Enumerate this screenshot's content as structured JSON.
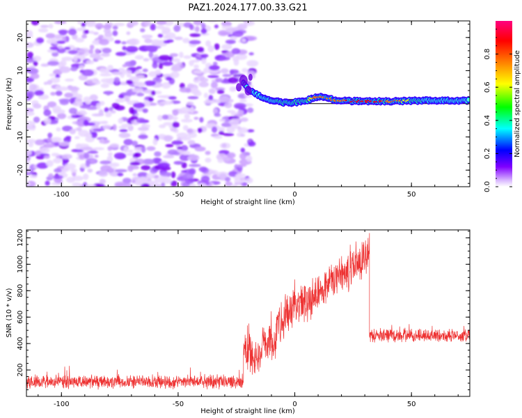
{
  "title": "PAZ1.2024.177.00.33.G21",
  "chart_data": [
    {
      "type": "heatmap",
      "xlabel": "Height of straight line (km)",
      "ylabel": "Frequency (Hz)",
      "xlim": [
        -115,
        75
      ],
      "ylim": [
        -25,
        25
      ],
      "x_ticks": [
        -100,
        -50,
        0,
        50
      ],
      "y_ticks": [
        -20,
        -10,
        0,
        10,
        20
      ],
      "colorbar": {
        "label": "Normalized spectral amplitude",
        "range": [
          0.0,
          1.0
        ],
        "ticks": [
          0.0,
          0.2,
          0.4,
          0.6,
          0.8
        ],
        "colors": [
          "#ffffff",
          "#8000ff",
          "#0000ff",
          "#00ffff",
          "#00ff00",
          "#ffff00",
          "#ff8000",
          "#ff0000",
          "#ff0080"
        ]
      },
      "noise_region": {
        "x_range": [
          -115,
          -18
        ],
        "level": 0.15
      },
      "ridge": [
        {
          "x": -22,
          "y": 6.5,
          "amp": 0.3
        },
        {
          "x": -20,
          "y": 4.5,
          "amp": 0.35
        },
        {
          "x": -17,
          "y": 3.0,
          "amp": 0.35
        },
        {
          "x": -14,
          "y": 2.0,
          "amp": 0.4
        },
        {
          "x": -10,
          "y": 1.0,
          "amp": 0.45
        },
        {
          "x": -6,
          "y": 0.5,
          "amp": 0.55
        },
        {
          "x": -2,
          "y": 0.3,
          "amp": 0.5
        },
        {
          "x": 2,
          "y": 0.6,
          "amp": 0.55
        },
        {
          "x": 6,
          "y": 1.2,
          "amp": 0.6
        },
        {
          "x": 10,
          "y": 2.2,
          "amp": 0.8
        },
        {
          "x": 14,
          "y": 1.8,
          "amp": 0.8
        },
        {
          "x": 18,
          "y": 1.0,
          "amp": 0.75
        },
        {
          "x": 25,
          "y": 0.8,
          "amp": 0.85
        },
        {
          "x": 35,
          "y": 0.8,
          "amp": 0.85
        },
        {
          "x": 45,
          "y": 0.8,
          "amp": 0.7
        },
        {
          "x": 55,
          "y": 1.0,
          "amp": 0.5
        },
        {
          "x": 65,
          "y": 1.0,
          "amp": 0.45
        },
        {
          "x": 75,
          "y": 1.0,
          "amp": 0.45
        }
      ]
    },
    {
      "type": "line",
      "xlabel": "Height of straight line (km)",
      "ylabel": "SNR (10 * v/v)",
      "xlim": [
        -115,
        75
      ],
      "ylim": [
        0,
        1260
      ],
      "x_ticks": [
        -100,
        -50,
        0,
        50
      ],
      "y_ticks": [
        200,
        400,
        600,
        800,
        1000,
        1200
      ],
      "color": "#ee3333",
      "segments": [
        {
          "x_range": [
            -115,
            -22
          ],
          "mean": 110,
          "jitter": 60
        },
        {
          "x_range": [
            -22,
            -18
          ],
          "mean": 350,
          "jitter": 220
        },
        {
          "x_range": [
            -18,
            -14
          ],
          "mean": 300,
          "jitter": 200
        },
        {
          "x_range": [
            -14,
            -8
          ],
          "mean": 400,
          "jitter": 160
        },
        {
          "x_range": [
            -8,
            32
          ],
          "mean_start": 550,
          "mean_end": 1080,
          "jitter": 180
        },
        {
          "x_range": [
            32,
            75
          ],
          "mean": 460,
          "jitter": 60
        }
      ]
    }
  ]
}
